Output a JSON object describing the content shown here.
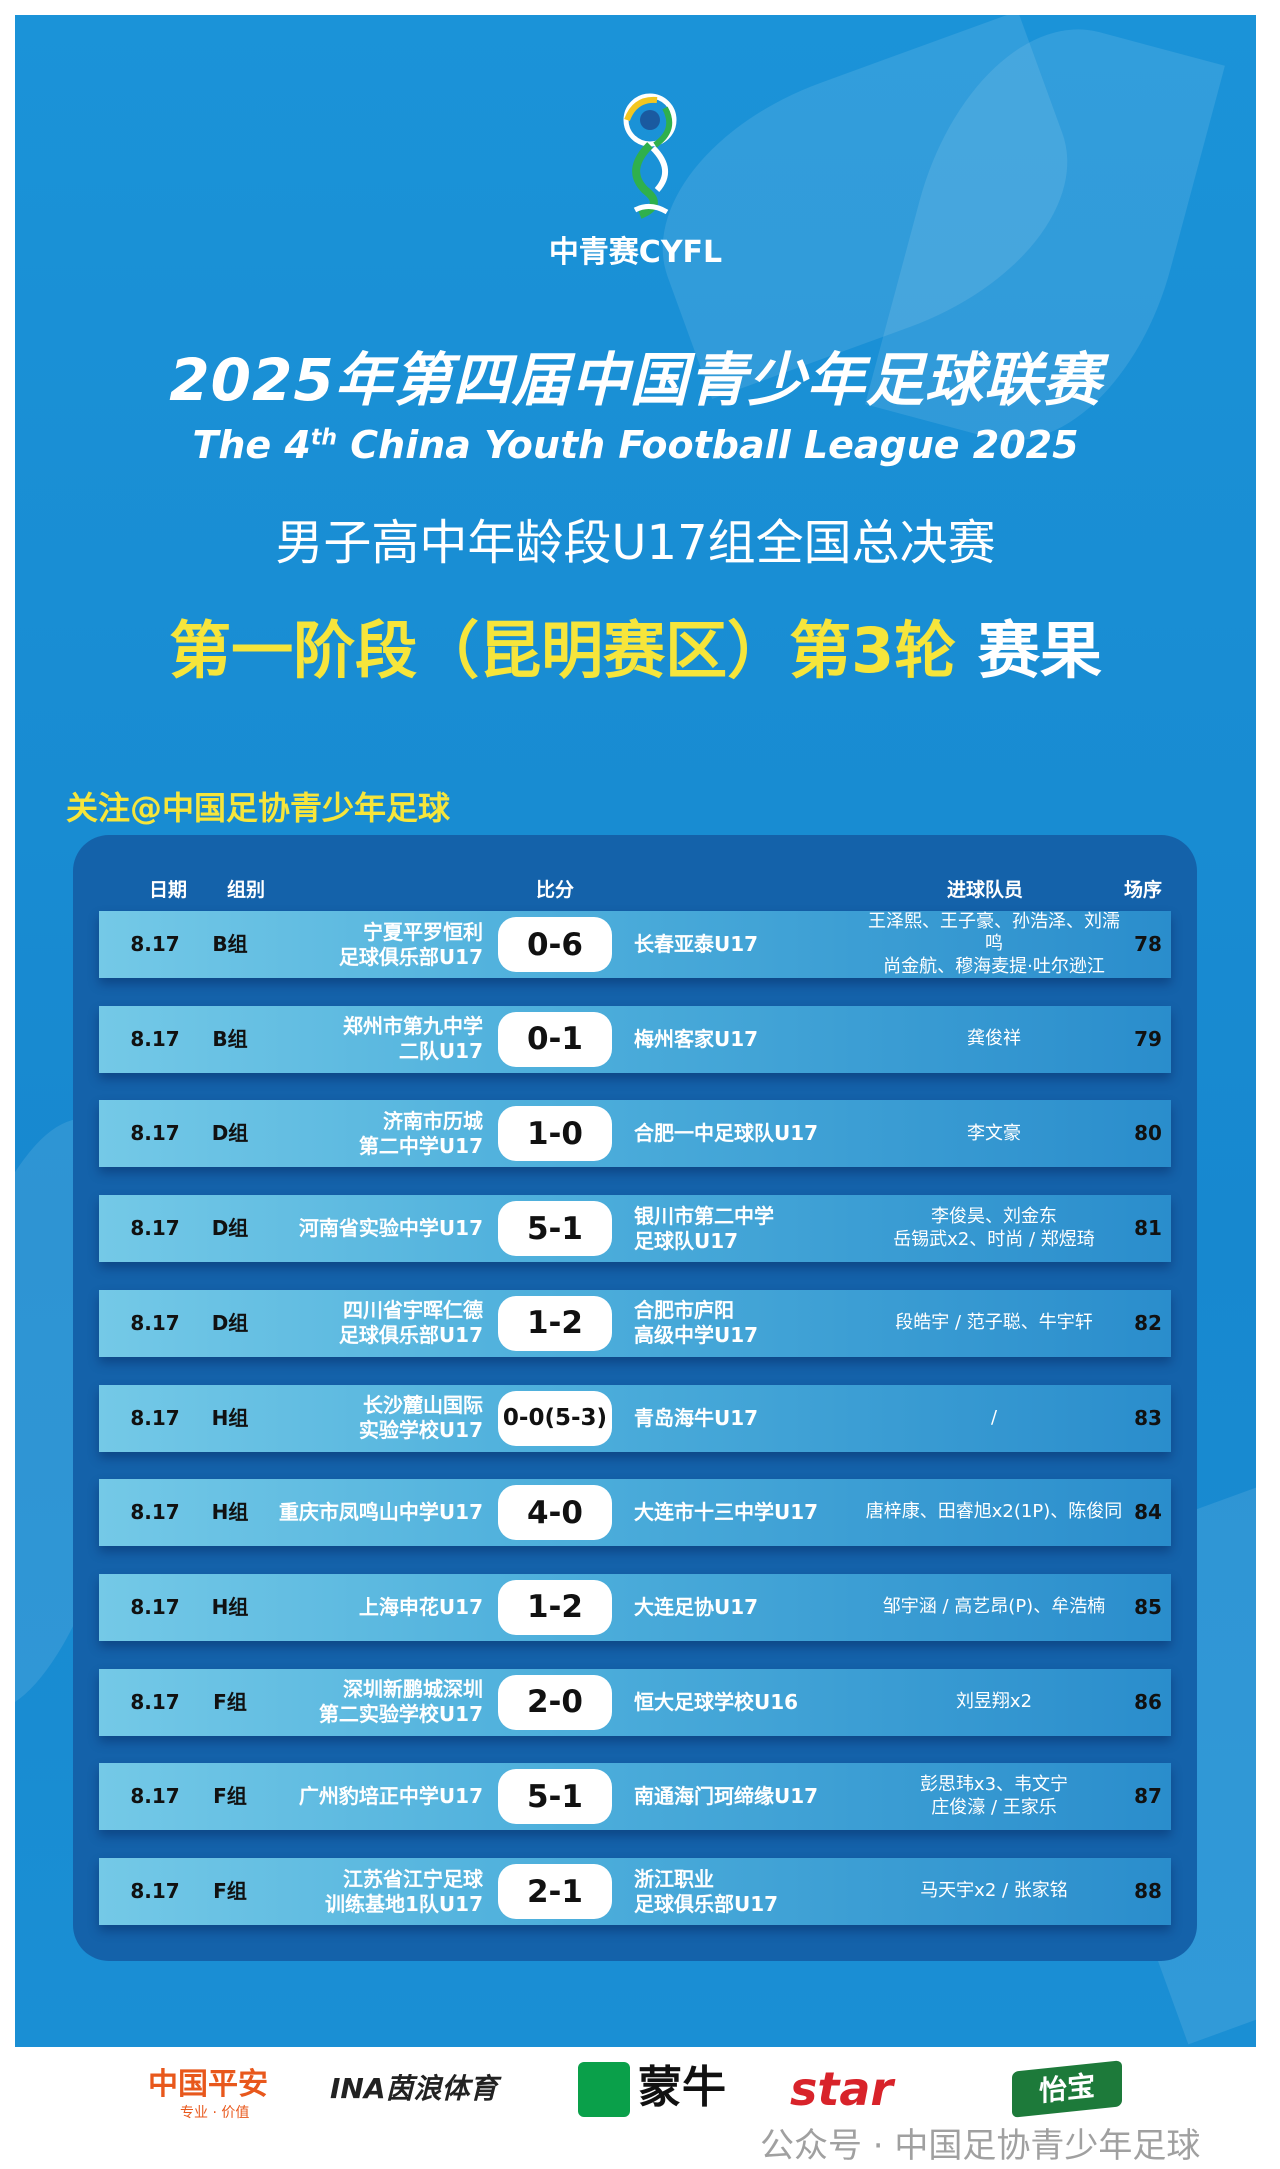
{
  "header": {
    "logo_text": "中青赛CYFL",
    "title_cn": "2025年第四届中国青少年足球联赛",
    "title_en_pre": "The 4",
    "title_en_sup": "th",
    "title_en_post": " China Youth Football League 2025",
    "subtitle": "男子高中年龄段U17组全国总决赛",
    "stage": "第一阶段（昆明赛区）第3轮",
    "stage_suffix": "赛果",
    "follow": "关注@中国足协青少年足球"
  },
  "table": {
    "columns": {
      "date": "日期",
      "group": "组别",
      "score": "比分",
      "scorers": "进球队员",
      "match_no": "场序"
    },
    "rows": [
      {
        "date": "8.17",
        "group": "B组",
        "home": "宁夏平罗恒利\n足球俱乐部U17",
        "score": "0-6",
        "away": "长春亚泰U17",
        "scorers": "王泽熙、王子豪、孙浩泽、刘濡鸣\n尚金航、穆海麦提·吐尔逊江",
        "no": "78"
      },
      {
        "date": "8.17",
        "group": "B组",
        "home": "郑州市第九中学\n二队U17",
        "score": "0-1",
        "away": "梅州客家U17",
        "scorers": "龚俊祥",
        "no": "79"
      },
      {
        "date": "8.17",
        "group": "D组",
        "home": "济南市历城\n第二中学U17",
        "score": "1-0",
        "away": "合肥一中足球队U17",
        "scorers": "李文豪",
        "no": "80"
      },
      {
        "date": "8.17",
        "group": "D组",
        "home": "河南省实验中学U17",
        "score": "5-1",
        "away": "银川市第二中学\n足球队U17",
        "scorers": "李俊昊、刘金东\n岳锡武x2、时尚 / 郑煜琦",
        "no": "81"
      },
      {
        "date": "8.17",
        "group": "D组",
        "home": "四川省宇晖仁德\n足球俱乐部U17",
        "score": "1-2",
        "away": "合肥市庐阳\n高级中学U17",
        "scorers": "段皓宇 / 范子聪、牛宇轩",
        "no": "82"
      },
      {
        "date": "8.17",
        "group": "H组",
        "home": "长沙麓山国际\n实验学校U17",
        "score": "0-0(5-3)",
        "away": "青岛海牛U17",
        "scorers": "/",
        "no": "83"
      },
      {
        "date": "8.17",
        "group": "H组",
        "home": "重庆市凤鸣山中学U17",
        "score": "4-0",
        "away": "大连市十三中学U17",
        "scorers": "唐梓康、田睿旭x2(1P)、陈俊同",
        "no": "84"
      },
      {
        "date": "8.17",
        "group": "H组",
        "home": "上海申花U17",
        "score": "1-2",
        "away": "大连足协U17",
        "scorers": "邹宇涵 / 高艺昂(P)、牟浩楠",
        "no": "85"
      },
      {
        "date": "8.17",
        "group": "F组",
        "home": "深圳新鹏城深圳\n第二实验学校U17",
        "score": "2-0",
        "away": "恒大足球学校U16",
        "scorers": "刘昱翔x2",
        "no": "86"
      },
      {
        "date": "8.17",
        "group": "F组",
        "home": "广州豹培正中学U17",
        "score": "5-1",
        "away": "南通海门珂缔缘U17",
        "scorers": "彭思玮x3、韦文宁\n庄俊濠 / 王家乐",
        "no": "87"
      },
      {
        "date": "8.17",
        "group": "F组",
        "home": "江苏省江宁足球\n训练基地1队U17",
        "score": "2-1",
        "away": "浙江职业\n足球俱乐部U17",
        "scorers": "马天宇x2 / 张家铭",
        "no": "88"
      }
    ]
  },
  "sponsors": {
    "pingan": "中国平安",
    "pingan_slogan": "专业 · 价值",
    "ina": "INA茵浪体育",
    "mengniu": "蒙牛",
    "star": "star",
    "yibao": "怡宝",
    "watermark": "公众号 · 中国足协青少年足球"
  },
  "colors": {
    "panel": "#1a8fd4",
    "table": "#1462aa",
    "accent_yellow": "#f6e53b"
  }
}
